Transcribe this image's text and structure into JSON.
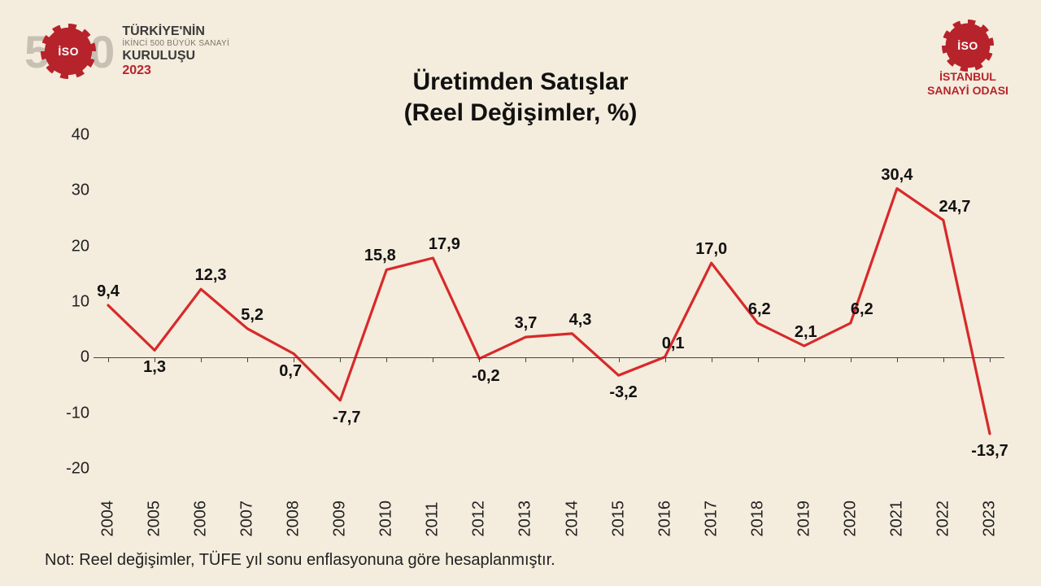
{
  "logo_left": {
    "five": "5",
    "gear_text": "İSO",
    "double_zero": "0",
    "line1": "TÜRKİYE'NİN",
    "line2": "İKİNCİ 500 BÜYÜK SANAYİ",
    "line3": "KURULUŞU",
    "line4": "2023"
  },
  "logo_right": {
    "gear_text": "İSO",
    "name_line1": "İSTANBUL",
    "name_line2": "SANAYİ ODASI"
  },
  "title_line1": "Üretimden Satışlar",
  "title_line2": "(Reel Değişimler, %)",
  "footnote": "Not: Reel değişimler, TÜFE yıl sonu enflasyonuna göre hesaplanmıştır.",
  "chart": {
    "type": "line",
    "line_color": "#d62a2a",
    "line_width": 3.2,
    "axis_color": "#444444",
    "background_color": "#f4ecdd",
    "title_fontsize": 30,
    "label_fontsize": 20,
    "datalabel_fontsize": 20,
    "ylim": [
      -20,
      40
    ],
    "ytick_step": 10,
    "yticks": [
      -20,
      -10,
      0,
      10,
      20,
      30,
      40
    ],
    "years": [
      "2004",
      "2005",
      "2006",
      "2007",
      "2008",
      "2009",
      "2010",
      "2011",
      "2012",
      "2013",
      "2014",
      "2015",
      "2016",
      "2017",
      "2018",
      "2019",
      "2020",
      "2021",
      "2022",
      "2023"
    ],
    "values": [
      9.4,
      1.3,
      12.3,
      5.2,
      0.7,
      -7.7,
      15.8,
      17.9,
      -0.2,
      3.7,
      4.3,
      -3.2,
      0.1,
      17.0,
      6.2,
      2.1,
      6.2,
      30.4,
      24.7,
      -13.7
    ],
    "value_labels": [
      "9,4",
      "1,3",
      "12,3",
      "5,2",
      "0,7",
      "-7,7",
      "15,8",
      "17,9",
      "-0,2",
      "3,7",
      "4,3",
      "-3,2",
      "0,1",
      "17,0",
      "6,2",
      "2,1",
      "6,2",
      "30,4",
      "24,7",
      "-13,7"
    ],
    "label_side": [
      "above",
      "below",
      "above",
      "above",
      "below",
      "below",
      "above",
      "above",
      "below",
      "above",
      "above",
      "below",
      "above",
      "above",
      "above",
      "above",
      "above",
      "above",
      "above",
      "below"
    ],
    "label_dx": [
      0,
      0,
      12,
      6,
      -4,
      8,
      -8,
      14,
      8,
      0,
      10,
      6,
      10,
      0,
      2,
      2,
      14,
      0,
      14,
      0
    ]
  }
}
